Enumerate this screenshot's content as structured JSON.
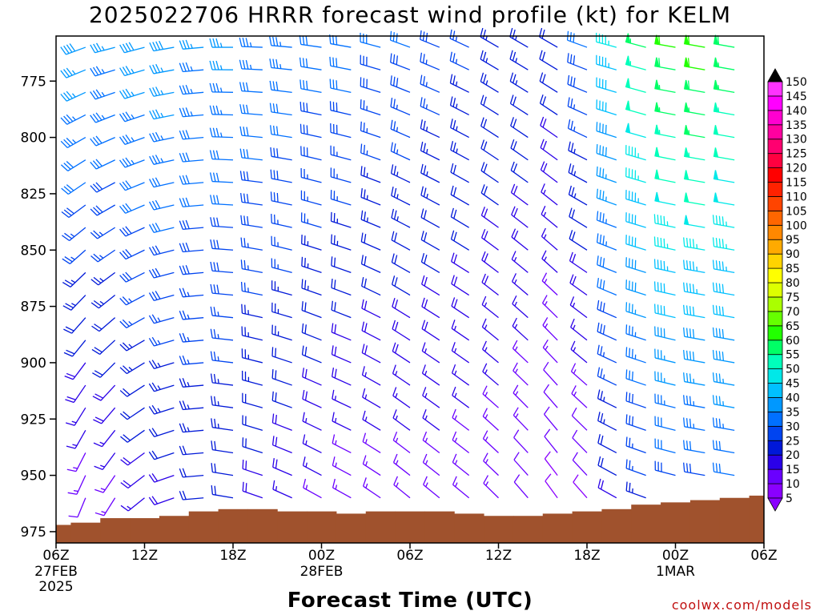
{
  "chart_data": {
    "type": "wind_profile",
    "title": "2025022706 HRRR forecast wind profile (kt) for KELM",
    "xlabel": "Forecast Time (UTC)",
    "credit": "coolwx.com/models",
    "y_axis": {
      "label": "",
      "range": [
        980,
        755
      ],
      "ticks": [
        775,
        800,
        825,
        850,
        875,
        900,
        925,
        950,
        975
      ],
      "inverted": true
    },
    "x_axis": {
      "range_hours": [
        0,
        48
      ],
      "ticks": [
        {
          "hour": 0,
          "label": "06Z",
          "sub": "27FEB",
          "sub2": "2025"
        },
        {
          "hour": 6,
          "label": "12Z",
          "sub": "",
          "sub2": ""
        },
        {
          "hour": 12,
          "label": "18Z",
          "sub": "",
          "sub2": ""
        },
        {
          "hour": 18,
          "label": "00Z",
          "sub": "28FEB",
          "sub2": ""
        },
        {
          "hour": 24,
          "label": "06Z",
          "sub": "",
          "sub2": ""
        },
        {
          "hour": 30,
          "label": "12Z",
          "sub": "",
          "sub2": ""
        },
        {
          "hour": 36,
          "label": "18Z",
          "sub": "",
          "sub2": ""
        },
        {
          "hour": 42,
          "label": "00Z",
          "sub": "1MAR",
          "sub2": ""
        },
        {
          "hour": 48,
          "label": "06Z",
          "sub": "",
          "sub2": ""
        }
      ]
    },
    "colorbar": {
      "units": "kt",
      "levels": [
        5,
        10,
        15,
        20,
        25,
        30,
        35,
        40,
        45,
        50,
        55,
        60,
        65,
        70,
        75,
        80,
        85,
        90,
        95,
        100,
        105,
        110,
        115,
        120,
        125,
        130,
        135,
        140,
        145,
        150
      ],
      "colors": [
        "#8a00ff",
        "#6a00ff",
        "#2a00e8",
        "#0018d8",
        "#0044f0",
        "#0070ff",
        "#0098ff",
        "#00c0ff",
        "#00e8e8",
        "#00ffbb",
        "#00ff66",
        "#22ff00",
        "#66ff00",
        "#aaff00",
        "#ddff00",
        "#ffff00",
        "#ffd400",
        "#ffaa00",
        "#ff8800",
        "#ff6600",
        "#ff4400",
        "#ff2200",
        "#ff0000",
        "#ff0040",
        "#ff0070",
        "#ff00a0",
        "#ff00d0",
        "#ff00ff",
        "#ff33ff",
        "#000000"
      ]
    },
    "wind": {
      "times_hours": [
        0,
        2,
        4,
        6,
        8,
        10,
        12,
        14,
        16,
        18,
        20,
        22,
        24,
        26,
        28,
        30,
        32,
        34,
        36,
        38,
        40,
        42,
        44,
        46,
        48
      ],
      "levels_mb": [
        760,
        770,
        780,
        790,
        800,
        810,
        820,
        830,
        840,
        850,
        860,
        870,
        880,
        890,
        900,
        910,
        920,
        930,
        940,
        950,
        960,
        970
      ],
      "speed_kt_top": [
        42,
        38,
        36,
        38,
        38,
        35,
        36,
        34,
        34,
        32,
        32,
        30,
        30,
        28,
        26,
        24,
        24,
        22,
        30,
        45,
        55,
        60,
        62,
        58,
        52
      ],
      "speed_kt_bottom": [
        8,
        10,
        12,
        16,
        18,
        20,
        20,
        18,
        16,
        14,
        12,
        12,
        12,
        12,
        12,
        12,
        10,
        8,
        8,
        18,
        22,
        26,
        26,
        28,
        28
      ],
      "dir_deg_top": [
        240,
        250,
        255,
        255,
        260,
        265,
        270,
        272,
        275,
        278,
        280,
        285,
        290,
        292,
        295,
        300,
        300,
        300,
        290,
        285,
        285,
        280,
        280,
        280,
        280
      ],
      "dir_deg_bottom": [
        190,
        200,
        210,
        230,
        250,
        265,
        280,
        290,
        295,
        300,
        300,
        305,
        310,
        310,
        310,
        315,
        320,
        325,
        320,
        300,
        290,
        285,
        280,
        280,
        280
      ]
    },
    "terrain": {
      "color": "#a0522d",
      "times_hours": [
        0,
        2,
        4,
        6,
        8,
        10,
        12,
        14,
        16,
        18,
        20,
        22,
        24,
        26,
        28,
        30,
        32,
        34,
        36,
        38,
        40,
        42,
        44,
        46,
        48
      ],
      "surface_pressure_mb": [
        972,
        971,
        969,
        969,
        968,
        966,
        965,
        965,
        966,
        966,
        967,
        966,
        966,
        966,
        967,
        968,
        968,
        967,
        966,
        965,
        963,
        962,
        961,
        960,
        959
      ]
    },
    "grid": false
  }
}
